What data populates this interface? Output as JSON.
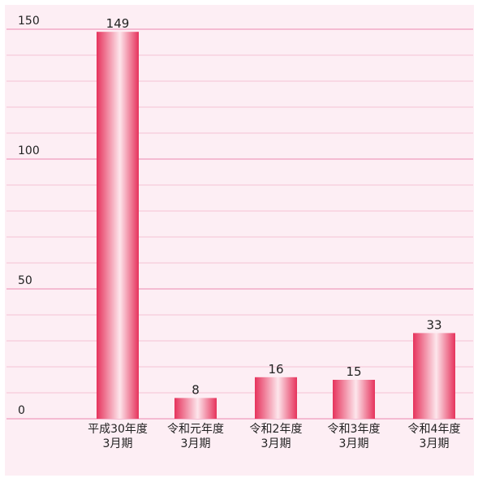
{
  "chart_data": {
    "type": "bar",
    "categories": [
      "平成30年度\n3月期",
      "令和元年度\n3月期",
      "令和2年度\n3月期",
      "令和3年度\n3月期",
      "令和4年度\n3月期"
    ],
    "values": [
      149,
      8,
      16,
      15,
      33
    ],
    "color": "#e6335c",
    "ylim": [
      0,
      150
    ],
    "yticks": [
      0,
      50,
      100,
      150
    ],
    "minor_yticks": [
      10,
      20,
      30,
      40,
      60,
      70,
      80,
      90,
      110,
      120,
      130,
      140
    ],
    "grid": true
  }
}
